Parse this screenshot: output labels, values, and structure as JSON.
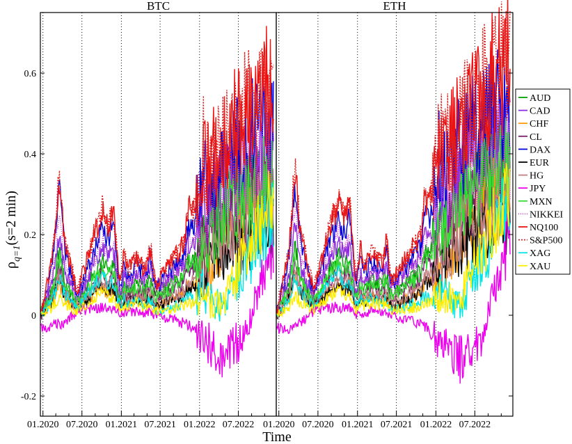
{
  "chart_data": {
    "type": "line",
    "xlabel": "Time",
    "ylabel_main": "ρ",
    "ylabel_sub": "q=1",
    "ylabel_rest": "(s=2 min)",
    "ylim": [
      -0.25,
      0.75
    ],
    "y_ticks": [
      -0.2,
      0,
      0.2,
      0.4,
      0.6
    ],
    "y_tick_labels": [
      "-0.2",
      "0",
      "0.2",
      "0.4",
      "0.6"
    ],
    "x_range": [
      "2019-12-20",
      "2022-12-25"
    ],
    "x_ticks": [
      "2020-01-01",
      "2020-07-01",
      "2021-01-01",
      "2021-07-01",
      "2022-01-01",
      "2022-07-01"
    ],
    "x_tick_labels": [
      "01.2020",
      "07.2020",
      "01.2021",
      "07.2021",
      "01.2022",
      "07.2022"
    ],
    "x_minor_ticks": [
      "2020-03-01",
      "2020-05-01",
      "2020-09-01",
      "2020-11-01",
      "2021-03-01",
      "2021-05-01",
      "2021-09-01",
      "2021-11-01",
      "2022-03-01",
      "2022-05-01",
      "2022-09-01",
      "2022-11-01"
    ],
    "grid": "vertical dotted at x ticks",
    "legend_position": "right",
    "panels": [
      {
        "title": "BTC",
        "seed": 11,
        "amp": 1.0
      },
      {
        "title": "ETH",
        "seed": 37,
        "amp": 1.1
      }
    ],
    "series": [
      {
        "name": "AUD",
        "color": "#00a000",
        "dash": "",
        "base": [
          0.01,
          0.1,
          0.03,
          0.14,
          0.04,
          0.08,
          0.05,
          0.1,
          0.18,
          0.27,
          0.32,
          0.34
        ]
      },
      {
        "name": "CAD",
        "color": "#8a2be2",
        "dash": "",
        "base": [
          0.01,
          0.13,
          0.04,
          0.17,
          0.05,
          0.1,
          0.07,
          0.13,
          0.22,
          0.33,
          0.38,
          0.4
        ]
      },
      {
        "name": "CHF",
        "color": "#ff9900",
        "dash": "",
        "base": [
          0.0,
          0.05,
          0.02,
          0.07,
          0.02,
          0.04,
          0.02,
          0.05,
          0.09,
          0.17,
          0.24,
          0.3
        ]
      },
      {
        "name": "CL",
        "color": "#7a1e6e",
        "dash": "",
        "base": [
          0.0,
          0.08,
          0.02,
          0.11,
          0.03,
          0.06,
          0.04,
          0.08,
          0.16,
          0.24,
          0.28,
          0.3
        ]
      },
      {
        "name": "DAX",
        "color": "#0000dd",
        "dash": "",
        "base": [
          0.01,
          0.2,
          0.05,
          0.22,
          0.07,
          0.12,
          0.07,
          0.15,
          0.3,
          0.38,
          0.43,
          0.48
        ]
      },
      {
        "name": "EUR",
        "color": "#000000",
        "dash": "",
        "base": [
          0.0,
          0.06,
          0.02,
          0.07,
          0.02,
          0.04,
          0.02,
          0.05,
          0.1,
          0.16,
          0.18,
          0.22
        ]
      },
      {
        "name": "HG",
        "color": "#c08080",
        "dash": "",
        "base": [
          0.0,
          0.07,
          0.02,
          0.09,
          0.02,
          0.05,
          0.03,
          0.06,
          0.12,
          0.19,
          0.24,
          0.28
        ]
      },
      {
        "name": "JPY",
        "color": "#ee00ee",
        "dash": "",
        "base": [
          -0.03,
          -0.03,
          0.01,
          0.02,
          0.0,
          0.01,
          0.0,
          -0.02,
          -0.06,
          -0.1,
          -0.05,
          0.18
        ]
      },
      {
        "name": "MXN",
        "color": "#33dd33",
        "dash": "",
        "base": [
          0.01,
          0.09,
          0.03,
          0.12,
          0.04,
          0.07,
          0.04,
          0.09,
          0.17,
          0.25,
          0.3,
          0.35
        ]
      },
      {
        "name": "NIKKEI",
        "color": "#cc44cc",
        "dash": "1,2",
        "base": [
          0.01,
          0.16,
          0.04,
          0.19,
          0.05,
          0.1,
          0.06,
          0.12,
          0.24,
          0.31,
          0.35,
          0.38
        ]
      },
      {
        "name": "NQ100",
        "color": "#ee1111",
        "dash": "",
        "base": [
          0.01,
          0.22,
          0.06,
          0.26,
          0.08,
          0.14,
          0.08,
          0.18,
          0.34,
          0.43,
          0.49,
          0.58
        ]
      },
      {
        "name": "S&P500",
        "color": "#dd2222",
        "dash": "2,2",
        "base": [
          0.01,
          0.23,
          0.06,
          0.27,
          0.08,
          0.14,
          0.08,
          0.18,
          0.35,
          0.43,
          0.5,
          0.57
        ]
      },
      {
        "name": "XAG",
        "color": "#00e5e5",
        "dash": "",
        "base": [
          0.0,
          0.06,
          0.02,
          0.1,
          0.02,
          0.04,
          0.01,
          0.03,
          0.05,
          0.02,
          0.12,
          0.26
        ]
      },
      {
        "name": "XAU",
        "color": "#ffee00",
        "dash": "",
        "base": [
          0.0,
          0.03,
          0.01,
          0.06,
          0.01,
          0.03,
          0.01,
          0.02,
          0.04,
          0.03,
          0.15,
          0.3
        ]
      }
    ]
  }
}
